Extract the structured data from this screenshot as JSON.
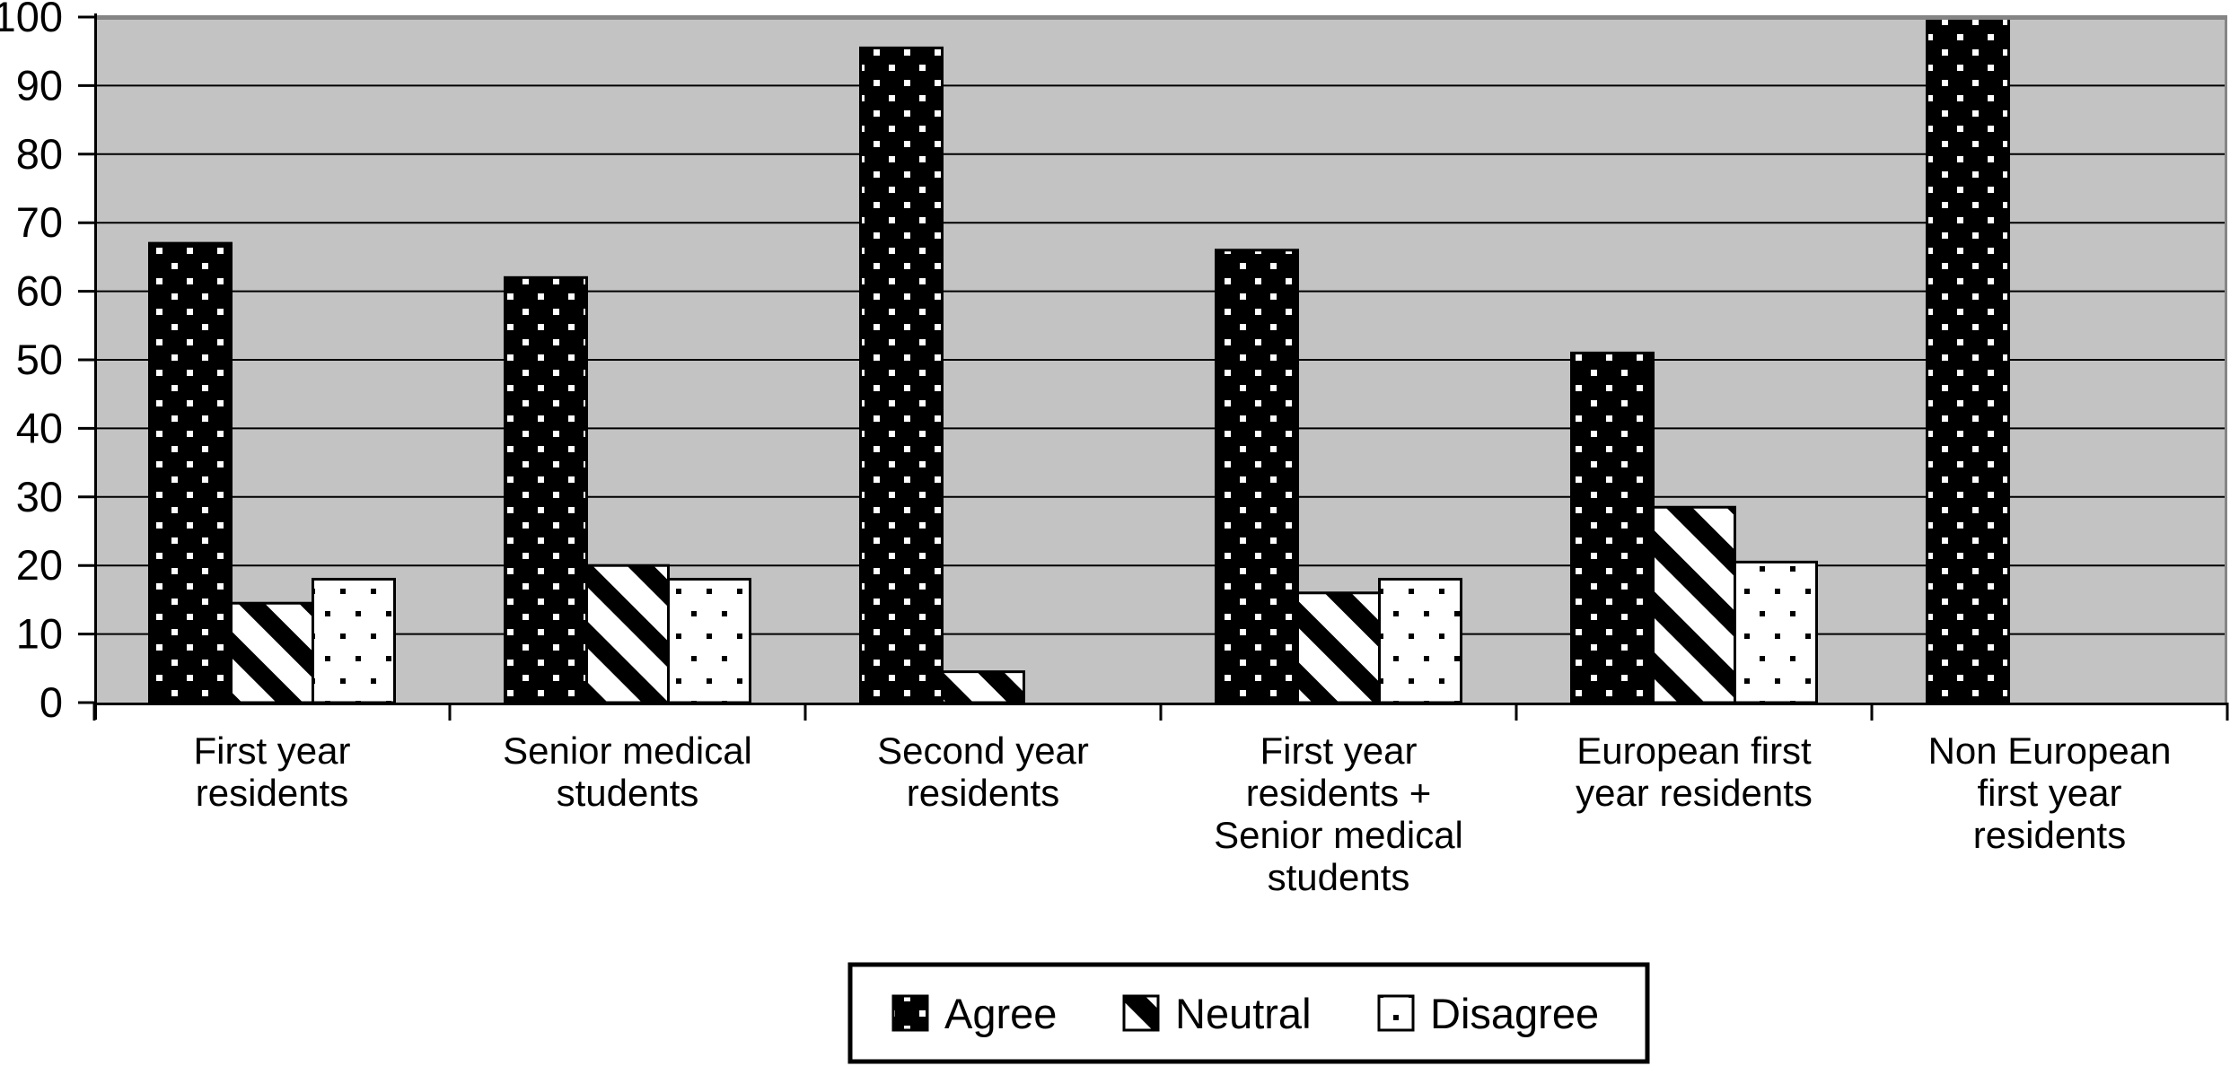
{
  "chart_data": {
    "type": "bar",
    "title": "",
    "xlabel": "",
    "ylabel": "",
    "categories": [
      "First year residents",
      "Senior medical students",
      "Second year residents",
      "First year residents + Senior medical students",
      "European first year residents",
      "Non European first year residents"
    ],
    "category_label_lines": [
      [
        "First year",
        "residents"
      ],
      [
        "Senior medical",
        "students"
      ],
      [
        "Second year",
        "residents"
      ],
      [
        "First year",
        "residents +",
        "Senior medical",
        "students"
      ],
      [
        "European first",
        "year residents"
      ],
      [
        "Non European",
        "first year",
        "residents"
      ]
    ],
    "series": [
      {
        "name": "Agree",
        "pattern": "black-with-white-dots",
        "values": [
          67,
          62,
          95.5,
          66,
          51,
          100
        ]
      },
      {
        "name": "Neutral",
        "pattern": "black-diagonal-stripes-on-white",
        "values": [
          14.5,
          20,
          4.5,
          16,
          28.5,
          0
        ]
      },
      {
        "name": "Disagree",
        "pattern": "white-with-black-dots",
        "values": [
          18,
          18,
          0,
          18,
          20.5,
          0
        ]
      }
    ],
    "ylim": [
      0,
      100
    ],
    "yticks": [
      0,
      10,
      20,
      30,
      40,
      50,
      60,
      70,
      80,
      90,
      100
    ],
    "grid": "horizontal",
    "legend_position": "bottom-center",
    "colors": {
      "plot_background": "#c3c3c3",
      "plot_border": "#858585",
      "axis": "#000000",
      "gridline": "#000000",
      "bar_dark": "#000000",
      "bar_light": "#ffffff",
      "legend_background": "#ffffff",
      "legend_border": "#000000"
    }
  }
}
